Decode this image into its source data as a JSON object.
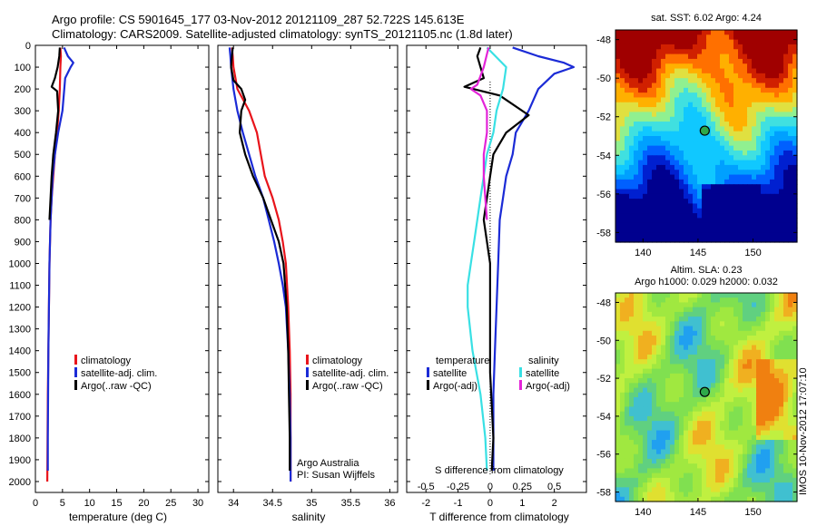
{
  "header": {
    "line1": "Argo profile: CS 5901645_177 03-Nov-2012 20121109_287 52.722S 145.613E",
    "line2": "Climatology: CARS2009. Satellite-adjusted climatology: synTS_20121105.nc (1.8d later)"
  },
  "colors": {
    "climatology": "#e8141b",
    "satellite": "#1b2bd6",
    "argo": "#000000",
    "satellite_s": "#39e0e4",
    "argo_s": "#e324d8"
  },
  "chart_data": [
    {
      "type": "line",
      "name": "temperature-panel",
      "xlabel": "temperature (deg C)",
      "xlim": [
        0,
        32
      ],
      "xticks": [
        0,
        5,
        10,
        15,
        20,
        25,
        30
      ],
      "ylim": [
        2050,
        0
      ],
      "yticks": [
        0,
        100,
        200,
        300,
        400,
        500,
        600,
        700,
        800,
        900,
        1000,
        1100,
        1200,
        1300,
        1400,
        1500,
        1600,
        1700,
        1800,
        1900,
        2000
      ],
      "legend": [
        "climatology",
        "satellite-adj. clim.",
        "Argo(..raw -QC)"
      ],
      "series": [
        {
          "name": "climatology",
          "color_key": "climatology",
          "points": [
            [
              4.6,
              10
            ],
            [
              4.7,
              50
            ],
            [
              4.6,
              100
            ],
            [
              4.5,
              200
            ],
            [
              4.3,
              300
            ],
            [
              4.0,
              400
            ],
            [
              3.6,
              500
            ],
            [
              3.3,
              600
            ],
            [
              3.0,
              700
            ],
            [
              2.8,
              800
            ],
            [
              2.7,
              900
            ],
            [
              2.6,
              1000
            ],
            [
              2.5,
              1200
            ],
            [
              2.4,
              1400
            ],
            [
              2.3,
              1600
            ],
            [
              2.25,
              1800
            ],
            [
              2.2,
              2000
            ]
          ]
        },
        {
          "name": "satellite-adj. clim.",
          "color_key": "satellite",
          "points": [
            [
              5.3,
              10
            ],
            [
              6.0,
              50
            ],
            [
              7.0,
              80
            ],
            [
              6.5,
              100
            ],
            [
              5.5,
              150
            ],
            [
              5.0,
              300
            ],
            [
              4.2,
              400
            ],
            [
              3.6,
              500
            ],
            [
              3.2,
              600
            ],
            [
              3.0,
              700
            ],
            [
              2.8,
              800
            ],
            [
              2.7,
              900
            ],
            [
              2.6,
              1000
            ],
            [
              2.5,
              1200
            ],
            [
              2.4,
              1400
            ],
            [
              2.35,
              1600
            ],
            [
              2.3,
              1800
            ],
            [
              2.3,
              1950
            ]
          ]
        },
        {
          "name": "Argo(..raw -QC)",
          "color_key": "argo",
          "points": [
            [
              4.5,
              10
            ],
            [
              4.4,
              50
            ],
            [
              4.1,
              100
            ],
            [
              3.6,
              150
            ],
            [
              3.0,
              190
            ],
            [
              4.0,
              210
            ],
            [
              4.2,
              300
            ],
            [
              3.8,
              400
            ],
            [
              3.3,
              500
            ],
            [
              3.0,
              600
            ],
            [
              2.8,
              700
            ],
            [
              2.6,
              800
            ]
          ]
        }
      ]
    },
    {
      "type": "line",
      "name": "salinity-panel",
      "xlabel": "salinity",
      "xlim": [
        33.8,
        36.1
      ],
      "xticks": [
        34,
        34.5,
        35,
        35.5,
        36
      ],
      "ylim": [
        2050,
        0
      ],
      "legend": [
        "climatology",
        "satellite-adj. clim.",
        "Argo(..raw -QC)"
      ],
      "notes": [
        "Argo Australia",
        "PI: Susan Wijffels"
      ],
      "series": [
        {
          "name": "climatology",
          "color_key": "climatology",
          "points": [
            [
              33.98,
              10
            ],
            [
              33.99,
              50
            ],
            [
              34.0,
              100
            ],
            [
              34.05,
              200
            ],
            [
              34.2,
              300
            ],
            [
              34.3,
              400
            ],
            [
              34.35,
              500
            ],
            [
              34.4,
              600
            ],
            [
              34.5,
              700
            ],
            [
              34.58,
              800
            ],
            [
              34.63,
              900
            ],
            [
              34.67,
              1000
            ],
            [
              34.7,
              1200
            ],
            [
              34.72,
              1400
            ],
            [
              34.73,
              1600
            ],
            [
              34.73,
              1800
            ],
            [
              34.73,
              2000
            ]
          ]
        },
        {
          "name": "satellite-adj. clim.",
          "color_key": "satellite",
          "points": [
            [
              33.95,
              10
            ],
            [
              33.96,
              50
            ],
            [
              33.97,
              100
            ],
            [
              34.0,
              200
            ],
            [
              34.05,
              300
            ],
            [
              34.12,
              400
            ],
            [
              34.2,
              500
            ],
            [
              34.28,
              600
            ],
            [
              34.38,
              700
            ],
            [
              34.45,
              800
            ],
            [
              34.52,
              900
            ],
            [
              34.58,
              1000
            ],
            [
              34.63,
              1100
            ],
            [
              34.67,
              1200
            ],
            [
              34.7,
              1400
            ],
            [
              34.72,
              1600
            ],
            [
              34.73,
              1800
            ],
            [
              34.73,
              2000
            ]
          ]
        },
        {
          "name": "Argo(..raw -QC)",
          "color_key": "argo",
          "points": [
            [
              33.99,
              10
            ],
            [
              33.98,
              50
            ],
            [
              33.97,
              100
            ],
            [
              34.0,
              160
            ],
            [
              34.1,
              200
            ],
            [
              34.15,
              250
            ],
            [
              34.1,
              300
            ],
            [
              34.08,
              400
            ],
            [
              34.15,
              500
            ],
            [
              34.25,
              600
            ],
            [
              34.38,
              700
            ],
            [
              34.48,
              800
            ],
            [
              34.58,
              900
            ],
            [
              34.64,
              1000
            ],
            [
              34.68,
              1200
            ],
            [
              34.7,
              1400
            ],
            [
              34.71,
              1600
            ],
            [
              34.72,
              1800
            ],
            [
              34.72,
              1950
            ]
          ]
        }
      ]
    },
    {
      "type": "line",
      "name": "difference-panel",
      "xlabel": "T difference from climatology",
      "xlabel_top": "S difference from climatology",
      "xlim": [
        -2.6,
        3.0
      ],
      "xticks": [
        -2,
        -1,
        0,
        1,
        2
      ],
      "xticks_top": [
        "-0.5",
        "-0.25",
        "0",
        "0.25",
        "0.5"
      ],
      "ylim": [
        2050,
        0
      ],
      "legend_temperature": [
        "temperature",
        "satellite",
        "Argo(-adj)"
      ],
      "legend_salinity": [
        "salinity",
        "satellite",
        "Argo(-adj)"
      ],
      "series": [
        {
          "name": "temperature satellite",
          "color_key": "satellite",
          "points": [
            [
              0.7,
              10
            ],
            [
              1.5,
              50
            ],
            [
              2.3,
              80
            ],
            [
              2.6,
              100
            ],
            [
              2.0,
              130
            ],
            [
              1.5,
              200
            ],
            [
              1.2,
              300
            ],
            [
              0.8,
              400
            ],
            [
              0.7,
              500
            ],
            [
              0.5,
              600
            ],
            [
              0.4,
              700
            ],
            [
              0.3,
              800
            ],
            [
              0.25,
              1000
            ],
            [
              0.2,
              1200
            ],
            [
              0.15,
              1400
            ],
            [
              0.1,
              1600
            ],
            [
              0.1,
              1800
            ],
            [
              0.1,
              1950
            ]
          ]
        },
        {
          "name": "temperature Argo(-adj)",
          "color_key": "argo",
          "points": [
            [
              -0.3,
              10
            ],
            [
              -0.4,
              50
            ],
            [
              -0.3,
              100
            ],
            [
              -0.2,
              150
            ],
            [
              -0.8,
              190
            ],
            [
              0.3,
              230
            ],
            [
              1.2,
              320
            ],
            [
              0.5,
              400
            ],
            [
              0.1,
              500
            ],
            [
              0,
              600
            ],
            [
              -0.1,
              700
            ],
            [
              -0.2,
              800
            ],
            [
              -0.1,
              900
            ],
            [
              0,
              1000
            ],
            [
              0,
              1200
            ],
            [
              0,
              1500
            ],
            [
              0.1,
              1800
            ],
            [
              0.05,
              1950
            ]
          ]
        },
        {
          "name": "salinity satellite",
          "color_key": "satellite_s",
          "points": [
            [
              -0.1,
              10
            ],
            [
              0.5,
              100
            ],
            [
              0.4,
              200
            ],
            [
              0.2,
              300
            ],
            [
              0.1,
              400
            ],
            [
              -0.1,
              500
            ],
            [
              -0.2,
              600
            ],
            [
              -0.3,
              700
            ],
            [
              -0.4,
              800
            ],
            [
              -0.5,
              900
            ],
            [
              -0.6,
              1000
            ],
            [
              -0.7,
              1100
            ],
            [
              -0.7,
              1200
            ],
            [
              -0.55,
              1400
            ],
            [
              -0.3,
              1600
            ],
            [
              -0.15,
              1800
            ],
            [
              -0.1,
              1950
            ]
          ]
        },
        {
          "name": "salinity Argo(-adj)",
          "color_key": "argo_s",
          "points": [
            [
              -0.05,
              10
            ],
            [
              -0.2,
              100
            ],
            [
              -0.4,
              180
            ],
            [
              -0.6,
              200
            ],
            [
              -0.3,
              230
            ],
            [
              -0.1,
              300
            ],
            [
              -0.1,
              400
            ],
            [
              -0.2,
              500
            ],
            [
              -0.2,
              600
            ],
            [
              -0.15,
              700
            ],
            [
              -0.1,
              800
            ]
          ]
        }
      ]
    }
  ],
  "map_sst": {
    "title": "sat. SST: 6.02 Argo: 4.24",
    "yticks": [
      "-48",
      "-50",
      "-52",
      "-54",
      "-56",
      "-58"
    ],
    "xticks": [
      "140",
      "145",
      "150"
    ]
  },
  "map_sla": {
    "title_line1": "Altim. SLA: 0.23",
    "title_line2": "Argo h1000: 0.029 h2000: 0.032",
    "yticks": [
      "-48",
      "-50",
      "-52",
      "-54",
      "-56",
      "-58"
    ],
    "xticks": [
      "140",
      "145",
      "150"
    ],
    "stamp": "IMOS 10-Nov-2012 17:07:10"
  }
}
